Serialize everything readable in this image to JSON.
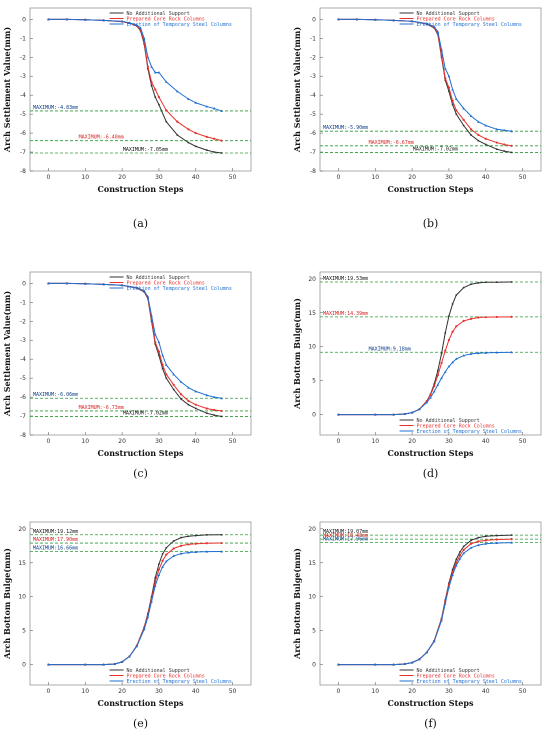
{
  "colors": {
    "none": "#333333",
    "core": "#e8302c",
    "steel": "#1f6fd1",
    "guide": "#2e9a3a",
    "maxNone": "#111111",
    "maxCore": "#d81f1f",
    "maxSteel": "#0b3e88"
  },
  "legend": [
    "No Additional Support",
    "Prepared Core Rock Columns",
    "Erection of Temporary Steel Columns"
  ],
  "xlabel": "Construction Steps",
  "chart_data": [
    {
      "id": "a",
      "label": "(a)",
      "type": "line",
      "ylabel": "Arch Settlement Value(mm)",
      "xlim": [
        -5,
        55
      ],
      "ylim": [
        -8,
        0.6
      ],
      "xticks": [
        0,
        10,
        20,
        30,
        40,
        50
      ],
      "yticks": [
        0,
        -1,
        -2,
        -3,
        -4,
        -5,
        -6,
        -7,
        -8
      ],
      "legend_pos": "top-right",
      "maxima": [
        {
          "label": "MAXIMUM:-4.83mm",
          "value": -4.83,
          "series": "steel",
          "pos": "left"
        },
        {
          "label": "MAXIMUM:-6.40mm",
          "value": -6.4,
          "series": "core",
          "pos": "mid"
        },
        {
          "label": "MAXIMUM:-7.05mm",
          "value": -7.05,
          "series": "none",
          "pos": "right"
        }
      ],
      "series": [
        {
          "key": "none",
          "x": [
            0,
            5,
            10,
            15,
            20,
            22,
            24,
            25,
            26,
            27,
            28,
            29,
            30,
            32,
            35,
            38,
            40,
            43,
            45,
            47
          ],
          "y": [
            0,
            0,
            -0.02,
            -0.05,
            -0.12,
            -0.2,
            -0.35,
            -0.6,
            -1.3,
            -2.6,
            -3.5,
            -4.1,
            -4.5,
            -5.4,
            -6.1,
            -6.5,
            -6.7,
            -6.9,
            -7,
            -7.05
          ]
        },
        {
          "key": "core",
          "x": [
            0,
            5,
            10,
            15,
            20,
            22,
            24,
            25,
            26,
            27,
            28,
            29,
            30,
            32,
            35,
            38,
            40,
            43,
            45,
            47
          ],
          "y": [
            0,
            0,
            -0.02,
            -0.05,
            -0.12,
            -0.2,
            -0.33,
            -0.55,
            -1.2,
            -2.5,
            -3.3,
            -3.7,
            -4.1,
            -4.8,
            -5.4,
            -5.8,
            -6,
            -6.2,
            -6.3,
            -6.4
          ]
        },
        {
          "key": "steel",
          "x": [
            0,
            5,
            10,
            15,
            20,
            22,
            24,
            25,
            26,
            27,
            28,
            29,
            30,
            32,
            35,
            38,
            40,
            43,
            45,
            47
          ],
          "y": [
            0,
            0,
            -0.02,
            -0.05,
            -0.1,
            -0.18,
            -0.3,
            -0.45,
            -1,
            -2,
            -2.5,
            -2.8,
            -2.8,
            -3.3,
            -3.8,
            -4.2,
            -4.4,
            -4.6,
            -4.7,
            -4.83
          ]
        }
      ]
    },
    {
      "id": "b",
      "label": "(b)",
      "type": "line",
      "ylabel": "Arch Settlement Value(mm)",
      "xlim": [
        -5,
        55
      ],
      "ylim": [
        -8,
        0.6
      ],
      "xticks": [
        0,
        10,
        20,
        30,
        40,
        50
      ],
      "yticks": [
        0,
        -1,
        -2,
        -3,
        -4,
        -5,
        -6,
        -7,
        -8
      ],
      "legend_pos": "top-right",
      "maxima": [
        {
          "label": "MAXIMUM:-5.90mm",
          "value": -5.9,
          "series": "steel",
          "pos": "left"
        },
        {
          "label": "MAXIMUM:-6.67mm",
          "value": -6.67,
          "series": "core",
          "pos": "mid"
        },
        {
          "label": "MAXIMUM:-7.02mm",
          "value": -7.02,
          "series": "none",
          "pos": "right"
        }
      ],
      "series": [
        {
          "key": "none",
          "x": [
            0,
            5,
            10,
            15,
            20,
            24,
            26,
            27,
            28,
            29,
            30,
            31,
            32,
            34,
            36,
            38,
            40,
            43,
            45,
            47
          ],
          "y": [
            0,
            0,
            -0.02,
            -0.05,
            -0.1,
            -0.25,
            -0.45,
            -0.8,
            -2,
            -3.2,
            -3.8,
            -4.5,
            -5,
            -5.6,
            -6.1,
            -6.4,
            -6.6,
            -6.85,
            -6.95,
            -7.02
          ]
        },
        {
          "key": "core",
          "x": [
            0,
            5,
            10,
            15,
            20,
            24,
            26,
            27,
            28,
            29,
            30,
            31,
            32,
            34,
            36,
            38,
            40,
            43,
            45,
            47
          ],
          "y": [
            0,
            0,
            -0.02,
            -0.05,
            -0.1,
            -0.24,
            -0.42,
            -0.75,
            -1.9,
            -3.1,
            -3.6,
            -4.3,
            -4.8,
            -5.3,
            -5.8,
            -6.1,
            -6.3,
            -6.5,
            -6.6,
            -6.67
          ]
        },
        {
          "key": "steel",
          "x": [
            0,
            5,
            10,
            15,
            20,
            24,
            26,
            27,
            28,
            29,
            30,
            31,
            32,
            34,
            36,
            38,
            40,
            43,
            45,
            47
          ],
          "y": [
            0,
            0,
            -0.02,
            -0.05,
            -0.1,
            -0.22,
            -0.38,
            -0.65,
            -1.6,
            -2.6,
            -3,
            -3.7,
            -4.2,
            -4.7,
            -5.1,
            -5.4,
            -5.6,
            -5.8,
            -5.85,
            -5.9
          ]
        }
      ]
    },
    {
      "id": "c",
      "label": "(c)",
      "type": "line",
      "ylabel": "Arch Settlement Value(mm)",
      "xlim": [
        -5,
        55
      ],
      "ylim": [
        -8,
        0.6
      ],
      "xticks": [
        0,
        10,
        20,
        30,
        40,
        50
      ],
      "yticks": [
        0,
        -1,
        -2,
        -3,
        -4,
        -5,
        -6,
        -7,
        -8
      ],
      "legend_pos": "top-right",
      "maxima": [
        {
          "label": "MAXIMUM:-6.06mm",
          "value": -6.06,
          "series": "steel",
          "pos": "left"
        },
        {
          "label": "MAXIMUM:-6.73mm",
          "value": -6.73,
          "series": "core",
          "pos": "mid"
        },
        {
          "label": "MAXIMUM:-7.02mm",
          "value": -7.02,
          "series": "none",
          "pos": "right"
        }
      ],
      "series": [
        {
          "key": "none",
          "x": [
            0,
            5,
            10,
            15,
            20,
            24,
            26,
            27,
            28,
            29,
            30,
            31,
            32,
            34,
            36,
            38,
            40,
            43,
            45,
            47
          ],
          "y": [
            0,
            0,
            -0.02,
            -0.05,
            -0.1,
            -0.25,
            -0.45,
            -0.8,
            -2,
            -3.2,
            -3.8,
            -4.5,
            -5,
            -5.6,
            -6.1,
            -6.4,
            -6.6,
            -6.85,
            -6.95,
            -7.02
          ]
        },
        {
          "key": "core",
          "x": [
            0,
            5,
            10,
            15,
            20,
            24,
            26,
            27,
            28,
            29,
            30,
            31,
            32,
            34,
            36,
            38,
            40,
            43,
            45,
            47
          ],
          "y": [
            0,
            0,
            -0.02,
            -0.05,
            -0.1,
            -0.24,
            -0.42,
            -0.75,
            -1.9,
            -3.1,
            -3.6,
            -4.3,
            -4.8,
            -5.35,
            -5.85,
            -6.2,
            -6.4,
            -6.6,
            -6.68,
            -6.73
          ]
        },
        {
          "key": "steel",
          "x": [
            0,
            5,
            10,
            15,
            20,
            24,
            26,
            27,
            28,
            29,
            30,
            31,
            32,
            34,
            36,
            38,
            40,
            43,
            45,
            47
          ],
          "y": [
            0,
            0,
            -0.02,
            -0.05,
            -0.1,
            -0.22,
            -0.4,
            -0.7,
            -1.7,
            -2.7,
            -3.1,
            -3.8,
            -4.3,
            -4.8,
            -5.2,
            -5.5,
            -5.7,
            -5.9,
            -6,
            -6.06
          ]
        }
      ]
    },
    {
      "id": "d",
      "label": "(d)",
      "type": "line",
      "ylabel": "Arch Bottom Bulge(mm)",
      "xlim": [
        -5,
        55
      ],
      "ylim": [
        -3,
        21
      ],
      "xticks": [
        0,
        10,
        20,
        30,
        40,
        50
      ],
      "yticks": [
        0,
        5,
        10,
        15,
        20
      ],
      "legend_pos": "bottom-right",
      "maxima": [
        {
          "label": "MAXIMUM:19.53mm",
          "value": 19.53,
          "series": "none",
          "pos": "left"
        },
        {
          "label": "MAXIMUM:14.39mm",
          "value": 14.39,
          "series": "core",
          "pos": "left"
        },
        {
          "label": "MAXIMUM:9.18mm",
          "value": 9.18,
          "series": "steel",
          "pos": "mid"
        }
      ],
      "series": [
        {
          "key": "none",
          "x": [
            0,
            10,
            15,
            18,
            20,
            22,
            24,
            25,
            26,
            27,
            28,
            29,
            30,
            31,
            32,
            34,
            36,
            38,
            40,
            43,
            47
          ],
          "y": [
            0,
            0,
            0,
            0.1,
            0.3,
            0.8,
            2,
            3,
            4.5,
            6.5,
            9,
            12,
            14.5,
            16.3,
            17.6,
            18.7,
            19.2,
            19.4,
            19.5,
            19.5,
            19.53
          ]
        },
        {
          "key": "core",
          "x": [
            0,
            10,
            15,
            18,
            20,
            22,
            24,
            25,
            26,
            27,
            28,
            29,
            30,
            31,
            32,
            34,
            36,
            38,
            40,
            43,
            47
          ],
          "y": [
            0,
            0,
            0,
            0.1,
            0.3,
            0.8,
            2,
            2.9,
            4.2,
            5.8,
            7.6,
            9.4,
            11,
            12.2,
            13,
            13.8,
            14.1,
            14.3,
            14.35,
            14.38,
            14.39
          ]
        },
        {
          "key": "steel",
          "x": [
            0,
            10,
            15,
            18,
            20,
            22,
            24,
            25,
            26,
            27,
            28,
            29,
            30,
            31,
            32,
            34,
            36,
            38,
            40,
            43,
            47
          ],
          "y": [
            0,
            0,
            0,
            0.1,
            0.3,
            0.8,
            1.8,
            2.5,
            3.4,
            4.4,
            5.4,
            6.3,
            7.1,
            7.7,
            8.2,
            8.7,
            8.95,
            9.05,
            9.1,
            9.15,
            9.18
          ]
        }
      ]
    },
    {
      "id": "e",
      "label": "(e)",
      "type": "line",
      "ylabel": "Arch Bottom Bulge(mm)",
      "xlim": [
        -5,
        55
      ],
      "ylim": [
        -3,
        21
      ],
      "xticks": [
        0,
        10,
        20,
        30,
        40,
        50
      ],
      "yticks": [
        0,
        5,
        10,
        15,
        20
      ],
      "legend_pos": "bottom-right",
      "maxima": [
        {
          "label": "MAXIMUM:19.12mm",
          "value": 19.12,
          "series": "none",
          "pos": "left"
        },
        {
          "label": "MAXIMUM:17.90mm",
          "value": 17.9,
          "series": "core",
          "pos": "left"
        },
        {
          "label": "MAXIMUM:16.66mm",
          "value": 16.66,
          "series": "steel",
          "pos": "left"
        }
      ],
      "series": [
        {
          "key": "none",
          "x": [
            0,
            10,
            15,
            18,
            20,
            22,
            24,
            26,
            27,
            28,
            29,
            30,
            31,
            32,
            34,
            36,
            38,
            40,
            43,
            47
          ],
          "y": [
            0,
            0,
            0,
            0.1,
            0.4,
            1.2,
            2.8,
            5.5,
            7.5,
            10,
            12.8,
            14.8,
            16.3,
            17.2,
            18.2,
            18.7,
            18.9,
            19,
            19.1,
            19.12
          ]
        },
        {
          "key": "core",
          "x": [
            0,
            10,
            15,
            18,
            20,
            22,
            24,
            26,
            27,
            28,
            29,
            30,
            31,
            32,
            34,
            36,
            38,
            40,
            43,
            47
          ],
          "y": [
            0,
            0,
            0,
            0.1,
            0.4,
            1.2,
            2.8,
            5.4,
            7.3,
            9.7,
            12.2,
            14,
            15.3,
            16.2,
            17.1,
            17.5,
            17.7,
            17.8,
            17.88,
            17.9
          ]
        },
        {
          "key": "steel",
          "x": [
            0,
            10,
            15,
            18,
            20,
            22,
            24,
            26,
            27,
            28,
            29,
            30,
            31,
            32,
            34,
            36,
            38,
            40,
            43,
            47
          ],
          "y": [
            0,
            0,
            0,
            0.1,
            0.4,
            1.2,
            2.7,
            5.2,
            7,
            9.3,
            11.6,
            13.2,
            14.4,
            15.2,
            16,
            16.35,
            16.5,
            16.58,
            16.63,
            16.66
          ]
        }
      ]
    },
    {
      "id": "f",
      "label": "(f)",
      "type": "line",
      "ylabel": "Arch Bottom Bulge(mm)",
      "xlim": [
        -5,
        55
      ],
      "ylim": [
        -3,
        21
      ],
      "xticks": [
        0,
        10,
        20,
        30,
        40,
        50
      ],
      "yticks": [
        0,
        5,
        10,
        15,
        20
      ],
      "legend_pos": "bottom-right",
      "maxima": [
        {
          "label": "MAXIMUM:19.07mm",
          "value": 19.07,
          "series": "none",
          "pos": "left"
        },
        {
          "label": "MAXIMUM:18.48mm",
          "value": 18.48,
          "series": "core",
          "pos": "left"
        },
        {
          "label": "MAXIMUM:17.96mm",
          "value": 17.96,
          "series": "steel",
          "pos": "left"
        }
      ],
      "series": [
        {
          "key": "none",
          "x": [
            0,
            10,
            15,
            18,
            20,
            22,
            24,
            26,
            28,
            29,
            30,
            31,
            32,
            33,
            34,
            36,
            38,
            40,
            43,
            47
          ],
          "y": [
            0,
            0,
            0,
            0.1,
            0.3,
            0.8,
            1.8,
            3.5,
            6.8,
            9.5,
            12,
            14,
            15.5,
            16.6,
            17.4,
            18.3,
            18.7,
            18.9,
            19,
            19.07
          ]
        },
        {
          "key": "core",
          "x": [
            0,
            10,
            15,
            18,
            20,
            22,
            24,
            26,
            28,
            29,
            30,
            31,
            32,
            33,
            34,
            36,
            38,
            40,
            43,
            47
          ],
          "y": [
            0,
            0,
            0,
            0.1,
            0.3,
            0.8,
            1.8,
            3.5,
            6.7,
            9.3,
            11.8,
            13.6,
            15,
            16.1,
            16.9,
            17.8,
            18.15,
            18.3,
            18.42,
            18.48
          ]
        },
        {
          "key": "steel",
          "x": [
            0,
            10,
            15,
            18,
            20,
            22,
            24,
            26,
            28,
            29,
            30,
            31,
            32,
            33,
            34,
            36,
            38,
            40,
            43,
            47
          ],
          "y": [
            0,
            0,
            0,
            0.1,
            0.3,
            0.8,
            1.8,
            3.4,
            6.5,
            9,
            11.4,
            13.2,
            14.6,
            15.6,
            16.4,
            17.2,
            17.6,
            17.8,
            17.9,
            17.96
          ]
        }
      ]
    }
  ]
}
